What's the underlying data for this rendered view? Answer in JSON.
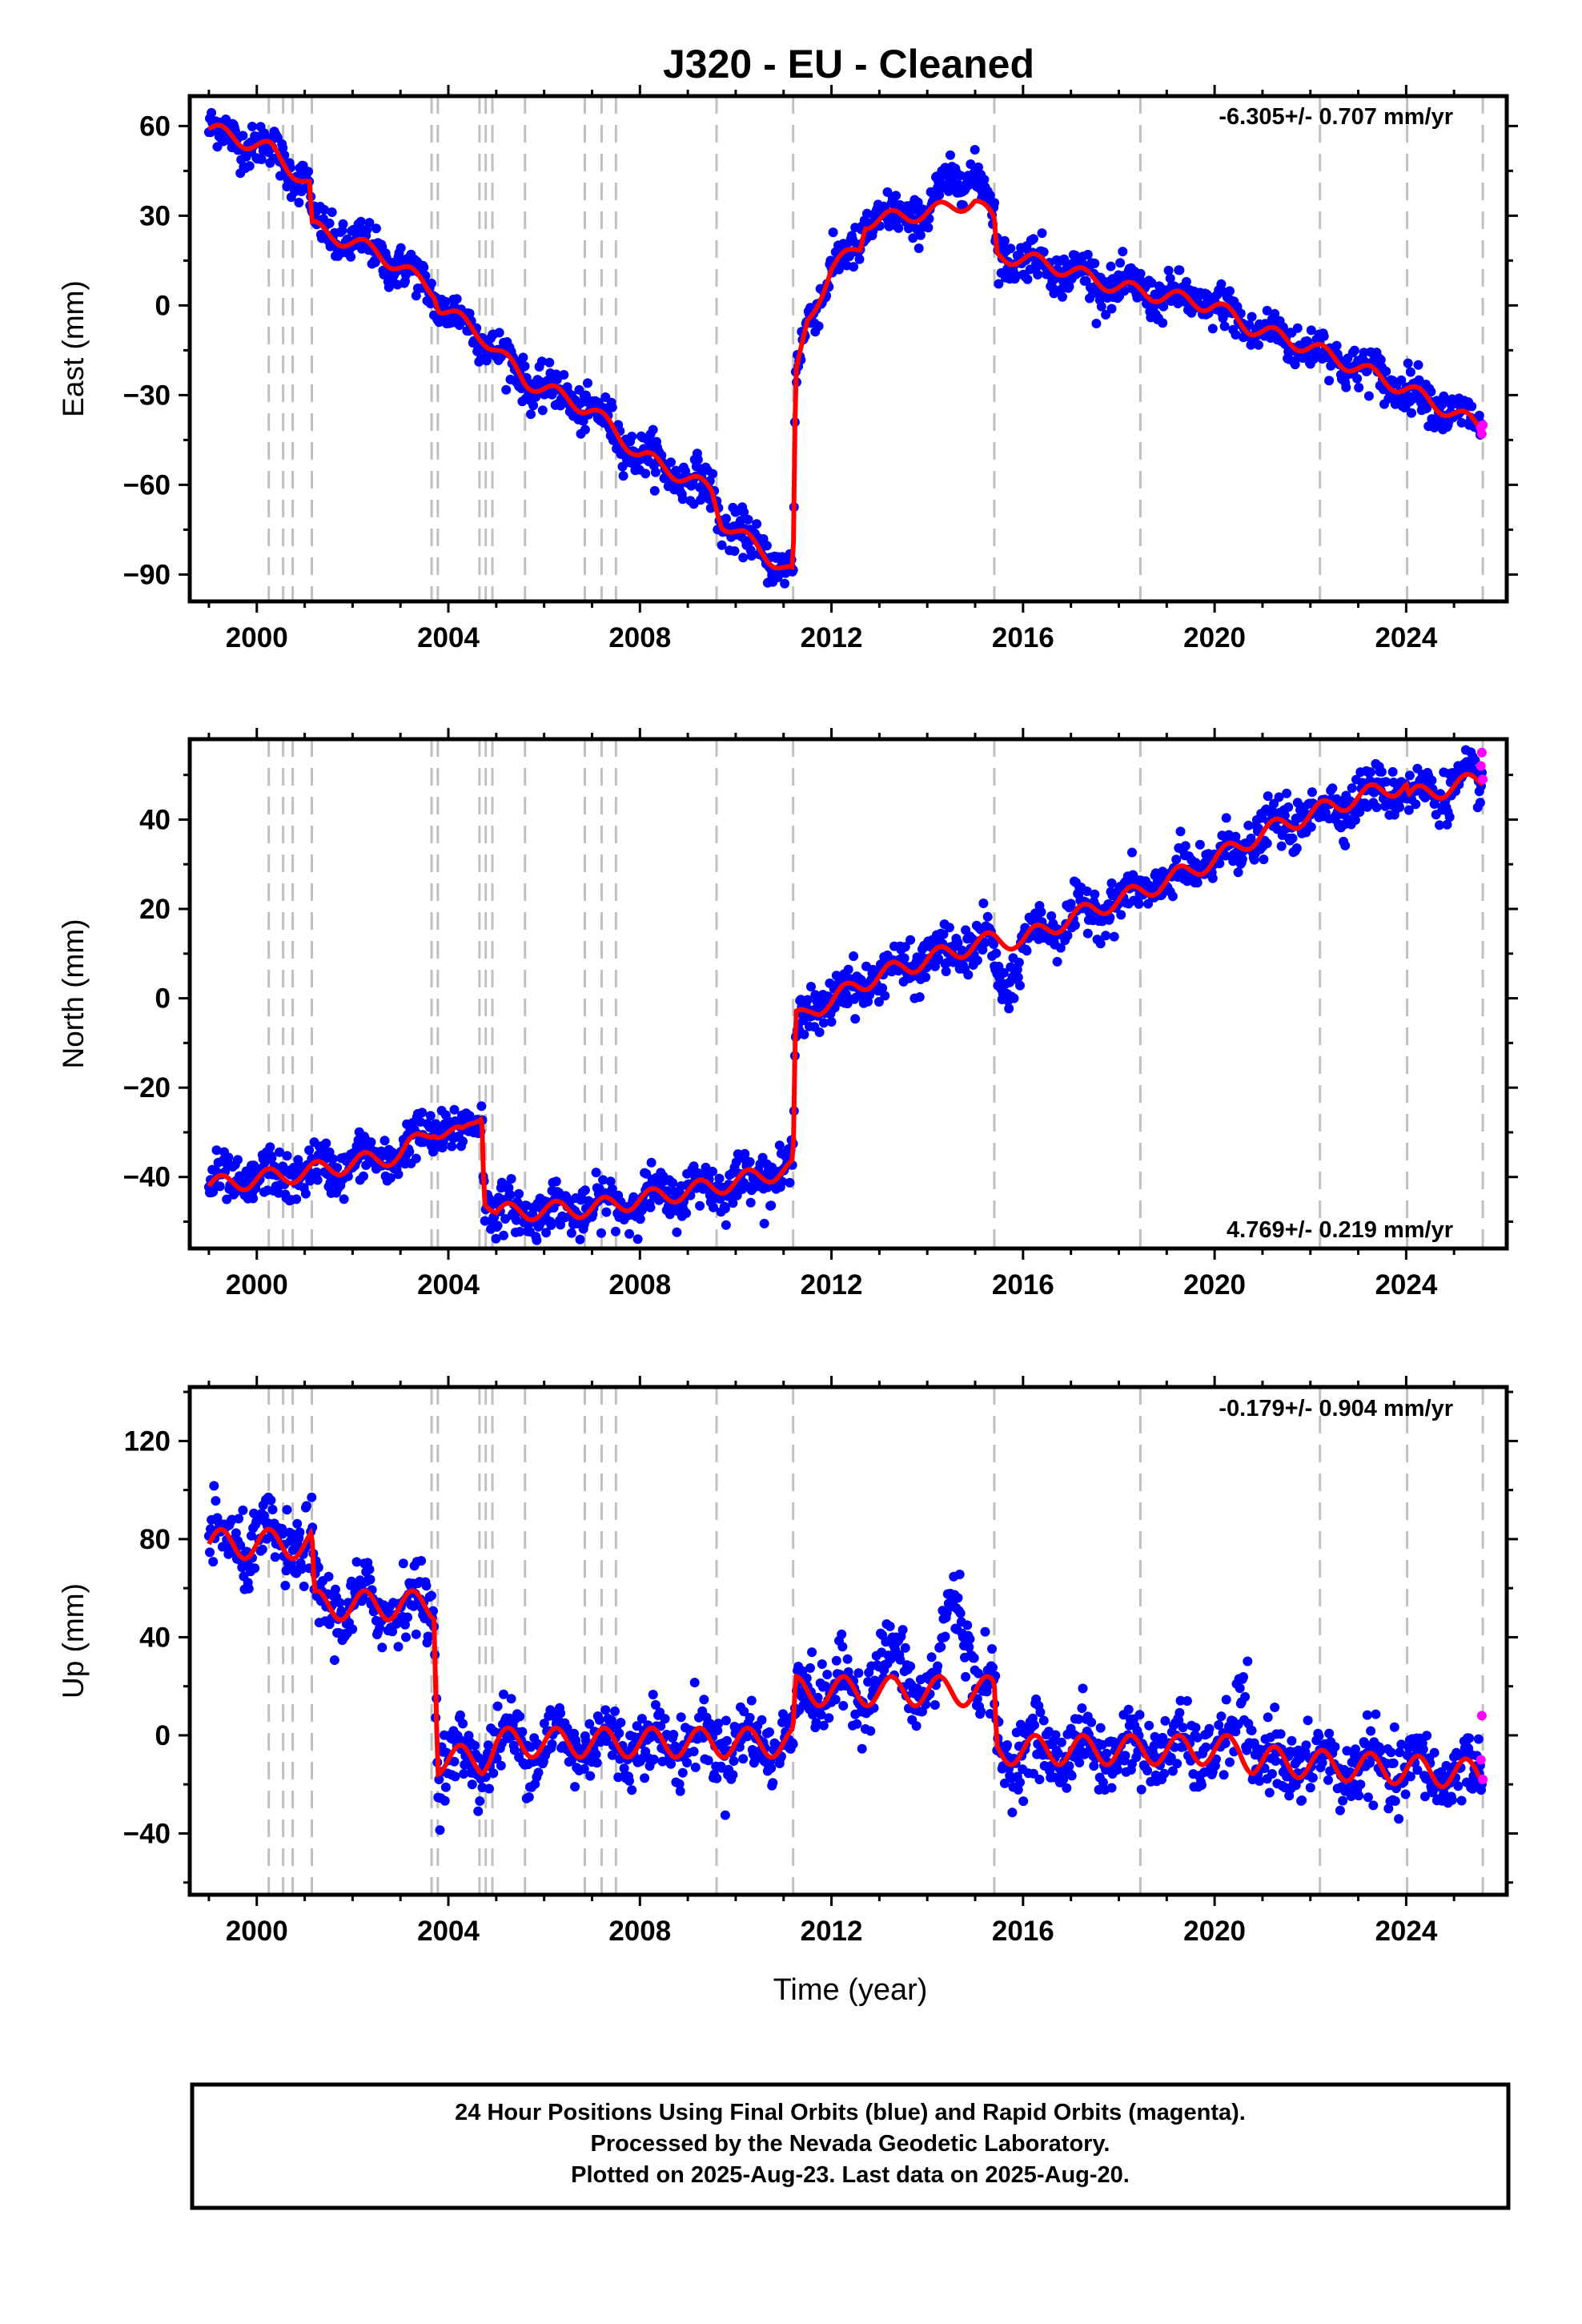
{
  "title": "J320  - EU - Cleaned",
  "x_axis_label": "Time (year)",
  "footer": {
    "line1": "24 Hour Positions Using Final Orbits (blue) and Rapid Orbits (magenta).",
    "line2": "Processed by the Nevada Geodetic Laboratory.",
    "line3": "Plotted on 2025-Aug-23. Last data on 2025-Aug-20."
  },
  "colors": {
    "final": "#0000ff",
    "rapid": "#ff00ff",
    "model": "#ff0000",
    "event_line": "#c0c0c0",
    "axis": "#000000"
  },
  "chart_data": [
    {
      "type": "scatter",
      "component": "East",
      "ylabel": "East (mm)",
      "rate_text": "-6.305+/- 0.707 mm/yr",
      "xlim": [
        1998.6,
        2026.1
      ],
      "ylim": [
        -99,
        70
      ],
      "xticks": [
        2000,
        2004,
        2008,
        2012,
        2016,
        2020,
        2024
      ],
      "yticks": [
        -90,
        -60,
        -30,
        0,
        30,
        60
      ],
      "event_lines": [
        2000.25,
        2000.55,
        2000.75,
        2001.15,
        2003.65,
        2003.78,
        2004.65,
        2004.78,
        2004.92,
        2005.6,
        2006.85,
        2007.2,
        2007.5,
        2009.6,
        2011.2,
        2015.4,
        2018.45,
        2022.2,
        2024.02,
        2025.6
      ],
      "model_trend": [
        [
          1999.0,
          59
        ],
        [
          2000.3,
          52
        ],
        [
          2001.1,
          40
        ],
        [
          2001.15,
          26
        ],
        [
          2002.5,
          18
        ],
        [
          2003.7,
          5
        ],
        [
          2003.8,
          0
        ],
        [
          2004.7,
          -10
        ],
        [
          2005.6,
          -25
        ],
        [
          2007.0,
          -35
        ],
        [
          2008.0,
          -50
        ],
        [
          2009.5,
          -62
        ],
        [
          2009.7,
          -72
        ],
        [
          2011.2,
          -90
        ],
        [
          2011.25,
          -25
        ],
        [
          2011.5,
          -5
        ],
        [
          2012.0,
          12
        ],
        [
          2012.6,
          20
        ],
        [
          2012.7,
          28
        ],
        [
          2014.0,
          31
        ],
        [
          2015.0,
          35
        ],
        [
          2015.4,
          28
        ],
        [
          2015.45,
          17
        ],
        [
          2016.5,
          14
        ],
        [
          2018.0,
          6
        ],
        [
          2020.0,
          0
        ],
        [
          2020.7,
          -7
        ],
        [
          2022.0,
          -14
        ],
        [
          2024.0,
          -28
        ],
        [
          2025.6,
          -41
        ]
      ],
      "scatter_sigma": 3.5,
      "scatter_extra": [
        [
          2014.0,
          2015.5,
          10
        ]
      ],
      "model_seasonal_amp": 2.5,
      "rapid_points": [
        [
          2025.56,
          -41
        ],
        [
          2025.58,
          -43
        ],
        [
          2025.6,
          -40
        ]
      ]
    },
    {
      "type": "scatter",
      "component": "North",
      "ylabel": "North (mm)",
      "rate_text": "4.769+/- 0.219 mm/yr",
      "xlim": [
        1998.6,
        2026.1
      ],
      "ylim": [
        -56,
        58
      ],
      "xticks": [
        2000,
        2004,
        2008,
        2012,
        2016,
        2020,
        2024
      ],
      "yticks": [
        -40,
        -20,
        0,
        20,
        40
      ],
      "event_lines": [
        2000.25,
        2000.55,
        2000.75,
        2001.15,
        2003.65,
        2003.78,
        2004.65,
        2004.78,
        2004.92,
        2005.6,
        2006.85,
        2007.2,
        2007.5,
        2009.6,
        2011.2,
        2015.4,
        2018.45,
        2022.2,
        2024.02,
        2025.6
      ],
      "model_trend": [
        [
          1999.0,
          -42
        ],
        [
          2001.0,
          -39
        ],
        [
          2003.0,
          -35
        ],
        [
          2003.7,
          -29
        ],
        [
          2004.3,
          -31
        ],
        [
          2004.7,
          -25
        ],
        [
          2004.75,
          -44
        ],
        [
          2005.0,
          -48
        ],
        [
          2007.0,
          -47
        ],
        [
          2009.6,
          -42
        ],
        [
          2011.2,
          -38
        ],
        [
          2011.25,
          -5
        ],
        [
          2011.6,
          -2
        ],
        [
          2012.0,
          -1
        ],
        [
          2012.5,
          3
        ],
        [
          2013.5,
          7
        ],
        [
          2015.0,
          12
        ],
        [
          2015.4,
          13
        ],
        [
          2016.0,
          13
        ],
        [
          2017.0,
          18
        ],
        [
          2018.5,
          24
        ],
        [
          2020.0,
          31
        ],
        [
          2021.0,
          37
        ],
        [
          2022.2,
          42
        ],
        [
          2023.0,
          45
        ],
        [
          2024.0,
          48
        ],
        [
          2024.05,
          45
        ],
        [
          2025.6,
          49
        ]
      ],
      "scatter_sigma": 2.6,
      "scatter_extra": [
        [
          2015.3,
          2016.0,
          -11
        ]
      ],
      "model_seasonal_amp": 2.0,
      "rapid_points": [
        [
          2025.56,
          52
        ],
        [
          2025.58,
          55
        ],
        [
          2025.6,
          49
        ]
      ]
    },
    {
      "type": "scatter",
      "component": "Up",
      "ylabel": "Up (mm)",
      "rate_text": "-0.179+/- 0.904 mm/yr",
      "xlim": [
        1998.6,
        2026.1
      ],
      "ylim": [
        -65,
        142
      ],
      "xticks": [
        2000,
        2004,
        2008,
        2012,
        2016,
        2020,
        2024
      ],
      "yticks": [
        -40,
        0,
        40,
        80,
        120
      ],
      "event_lines": [
        2000.25,
        2000.55,
        2000.75,
        2001.15,
        2003.65,
        2003.78,
        2004.65,
        2004.78,
        2004.92,
        2005.6,
        2006.85,
        2007.2,
        2007.5,
        2009.6,
        2011.2,
        2015.4,
        2018.45,
        2022.2,
        2024.02,
        2025.6
      ],
      "model_trend": [
        [
          1999.0,
          78
        ],
        [
          2001.15,
          78
        ],
        [
          2001.2,
          53
        ],
        [
          2003.7,
          53
        ],
        [
          2003.78,
          -10
        ],
        [
          2004.7,
          -10
        ],
        [
          2005.0,
          -3
        ],
        [
          2011.2,
          -3
        ],
        [
          2011.25,
          18
        ],
        [
          2015.4,
          18
        ],
        [
          2015.45,
          -6
        ],
        [
          2020.5,
          -6
        ],
        [
          2020.8,
          -10
        ],
        [
          2022.2,
          -12
        ],
        [
          2025.6,
          -16
        ]
      ],
      "scatter_sigma": 7.0,
      "scatter_extra": [
        [
          2014.2,
          2015.0,
          40
        ],
        [
          2020.4,
          2020.8,
          25
        ],
        [
          2012.7,
          2013.8,
          12
        ]
      ],
      "model_seasonal_amp": 6.0,
      "rapid_points": [
        [
          2025.56,
          -10
        ],
        [
          2025.58,
          8
        ],
        [
          2025.6,
          -18
        ]
      ]
    }
  ]
}
